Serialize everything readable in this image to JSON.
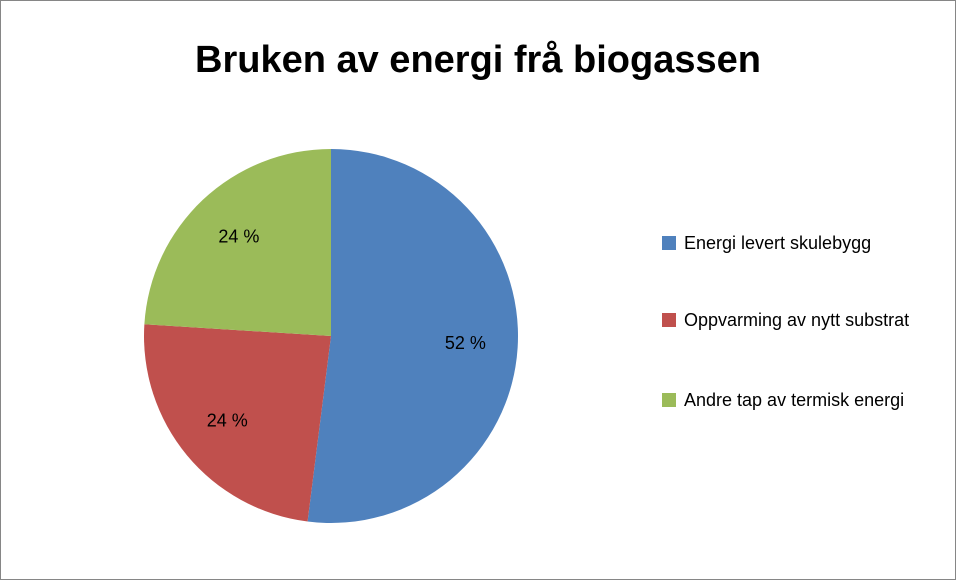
{
  "chart_data": {
    "type": "pie",
    "title": "Bruken av energi frå biogassen",
    "categories": [
      "Energi levert skulebygg",
      "Oppvarming av nytt substrat",
      "Andre tap av termisk energi"
    ],
    "values": [
      52,
      24,
      24
    ],
    "value_labels": [
      "52 %",
      "24 %",
      "24 %"
    ],
    "colors": [
      "#4f81bd",
      "#c0504d",
      "#9bbb59"
    ],
    "legend": "right"
  }
}
